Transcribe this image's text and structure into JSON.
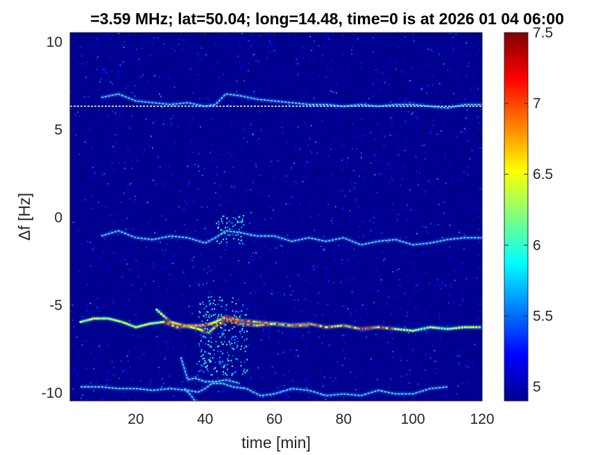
{
  "chart_data": {
    "type": "heatmap",
    "title": "=3.59 MHz;  lat=50.04; long=14.48, time=0 is at 2026 01 04 06:00",
    "xlabel": "time [min]",
    "ylabel": "Δf [Hz]",
    "xlim": [
      1,
      120
    ],
    "ylim": [
      -10.5,
      10.5
    ],
    "x_ticks": [
      20,
      40,
      60,
      80,
      100,
      120
    ],
    "y_ticks": [
      -10,
      -5,
      0,
      5,
      10
    ],
    "colorbar": {
      "colormap": "jet",
      "clim": [
        4.9,
        7.5
      ],
      "ticks": [
        5,
        5.5,
        6,
        6.5,
        7,
        7.5
      ]
    },
    "background_color": "#00008f",
    "traces": [
      {
        "name": "",
        "x": [
          1,
          120
        ],
        "y": [
          6.3,
          6.3
        ]
      },
      {
        "name": "",
        "x": [
          10,
          15,
          20,
          25,
          30,
          35,
          40,
          43,
          46,
          50,
          55,
          60,
          65,
          70,
          75,
          80,
          85,
          90,
          95,
          100,
          105,
          110,
          115,
          120
        ],
        "y": [
          6.8,
          7.0,
          6.6,
          6.5,
          6.4,
          6.5,
          6.3,
          6.4,
          7.0,
          6.9,
          6.7,
          6.6,
          6.5,
          6.4,
          6.4,
          6.3,
          6.4,
          6.3,
          6.4,
          6.4,
          6.3,
          6.2,
          6.4,
          6.4
        ]
      },
      {
        "name": "",
        "x": [
          10,
          15,
          20,
          25,
          30,
          35,
          40,
          43,
          46,
          50,
          55,
          60,
          65,
          70,
          75,
          80,
          85,
          90,
          95,
          100,
          105,
          110,
          115,
          120
        ],
        "y": [
          -1.1,
          -0.8,
          -1.2,
          -1.3,
          -1.1,
          -1.2,
          -1.5,
          -1.2,
          -0.8,
          -0.9,
          -1.1,
          -1.1,
          -1.4,
          -1.2,
          -1.4,
          -1.2,
          -1.6,
          -1.4,
          -1.3,
          -1.6,
          -1.5,
          -1.3,
          -1.2,
          -1.2
        ]
      },
      {
        "name": "",
        "x": [
          4,
          8,
          12,
          16,
          20,
          24,
          28,
          32,
          36,
          40,
          43,
          46,
          50,
          55,
          60,
          65,
          70,
          75,
          80,
          85,
          90,
          95,
          100,
          105,
          110,
          115,
          120
        ],
        "y": [
          -6.0,
          -5.8,
          -5.8,
          -6.0,
          -6.3,
          -6.1,
          -6.0,
          -6.3,
          -6.2,
          -6.2,
          -6.0,
          -5.7,
          -5.9,
          -6.0,
          -6.1,
          -6.2,
          -6.1,
          -6.3,
          -6.2,
          -6.4,
          -6.3,
          -6.4,
          -6.5,
          -6.3,
          -6.4,
          -6.3,
          -6.3
        ]
      },
      {
        "name": "",
        "x": [
          26,
          30,
          34,
          38,
          41,
          44,
          47,
          50,
          55,
          60,
          65,
          70
        ],
        "y": [
          -5.3,
          -6.0,
          -6.2,
          -6.4,
          -6.6,
          -6.1,
          -5.9,
          -6.1,
          -6.2,
          -6.1,
          -6.2,
          -6.2
        ]
      },
      {
        "name": "",
        "x": [
          4,
          10,
          15,
          20,
          25,
          30,
          35,
          38,
          40,
          42,
          45,
          48,
          52,
          56,
          60,
          65,
          70,
          75,
          80,
          85,
          90,
          95,
          100,
          105,
          110
        ],
        "y": [
          -9.7,
          -9.7,
          -9.8,
          -9.8,
          -9.9,
          -9.8,
          -9.9,
          -10.0,
          -9.8,
          -9.5,
          -9.5,
          -9.7,
          -9.8,
          -10.2,
          -10.1,
          -9.8,
          -9.9,
          -10.2,
          -10.1,
          -10.2,
          -9.9,
          -10.1,
          -10.1,
          -9.8,
          -9.7
        ]
      },
      {
        "name": "",
        "x": [
          33,
          35,
          37,
          40,
          43,
          46,
          50
        ],
        "y": [
          -8.0,
          -9.3,
          -9.2,
          -9.4,
          -9.4,
          -9.3,
          -9.5
        ]
      },
      {
        "name": "",
        "x": [
          34,
          36,
          37,
          38
        ],
        "y": [
          -9.8,
          -10.2,
          -10.5,
          -10.5
        ]
      }
    ]
  }
}
